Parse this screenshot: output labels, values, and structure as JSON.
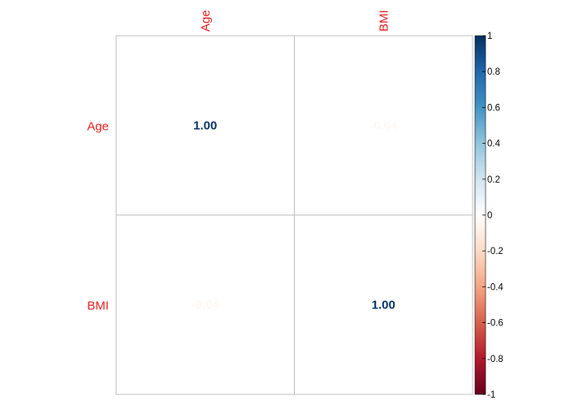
{
  "chart_data": {
    "type": "heatmap",
    "variables": [
      "Age",
      "BMI"
    ],
    "matrix": [
      [
        1.0,
        -0.04
      ],
      [
        -0.04,
        1.0
      ]
    ],
    "cell_labels": [
      [
        "1.00",
        "-0.04"
      ],
      [
        "-0.04",
        "1.00"
      ]
    ],
    "colorbar": {
      "range": [
        -1,
        1
      ],
      "ticks": [
        "1",
        "0.8",
        "0.6",
        "0.4",
        "0.2",
        "0",
        "-0.2",
        "-0.4",
        "-0.6",
        "-0.8",
        "-1"
      ],
      "tick_values": [
        1,
        0.8,
        0.6,
        0.4,
        0.2,
        0,
        -0.2,
        -0.4,
        -0.6,
        -0.8,
        -1
      ],
      "colors": [
        "#67001F",
        "#B2182B",
        "#D6604D",
        "#F4A582",
        "#FDDBC7",
        "#FFFFFF",
        "#D1E5F0",
        "#92C5DE",
        "#4393C3",
        "#2166AC",
        "#053061"
      ]
    },
    "label_color": "#E41A1C",
    "grid_color": "#BEBEBE"
  }
}
